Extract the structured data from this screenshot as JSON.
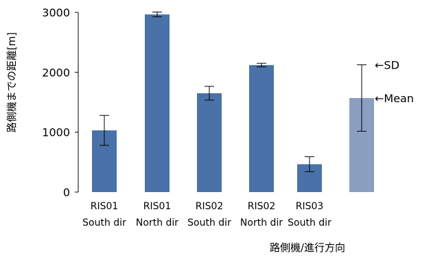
{
  "chart_data": {
    "type": "bar",
    "ylabel": "路側機までの距離[m]",
    "xlabel": "路側機/進行方向",
    "ylim": [
      0,
      3000
    ],
    "yticks": [
      0,
      1000,
      2000,
      3000
    ],
    "grid": false,
    "categories": [
      {
        "line1": "RIS01",
        "line2": "South dir"
      },
      {
        "line1": "RIS01",
        "line2": "North dir"
      },
      {
        "line1": "RIS02",
        "line2": "South dir"
      },
      {
        "line1": "RIS02",
        "line2": "North dir"
      },
      {
        "line1": "RIS03",
        "line2": "South dir"
      }
    ],
    "series": [
      {
        "values": [
          1030,
          2965,
          1650,
          2120,
          465
        ],
        "error": [
          250,
          40,
          115,
          30,
          125
        ],
        "color": "#4a72a8"
      }
    ],
    "legend_example": {
      "mean": 1570,
      "sd": 555,
      "color": "#8a9ec0",
      "sd_label": "←SD",
      "mean_label": "←Mean"
    }
  }
}
